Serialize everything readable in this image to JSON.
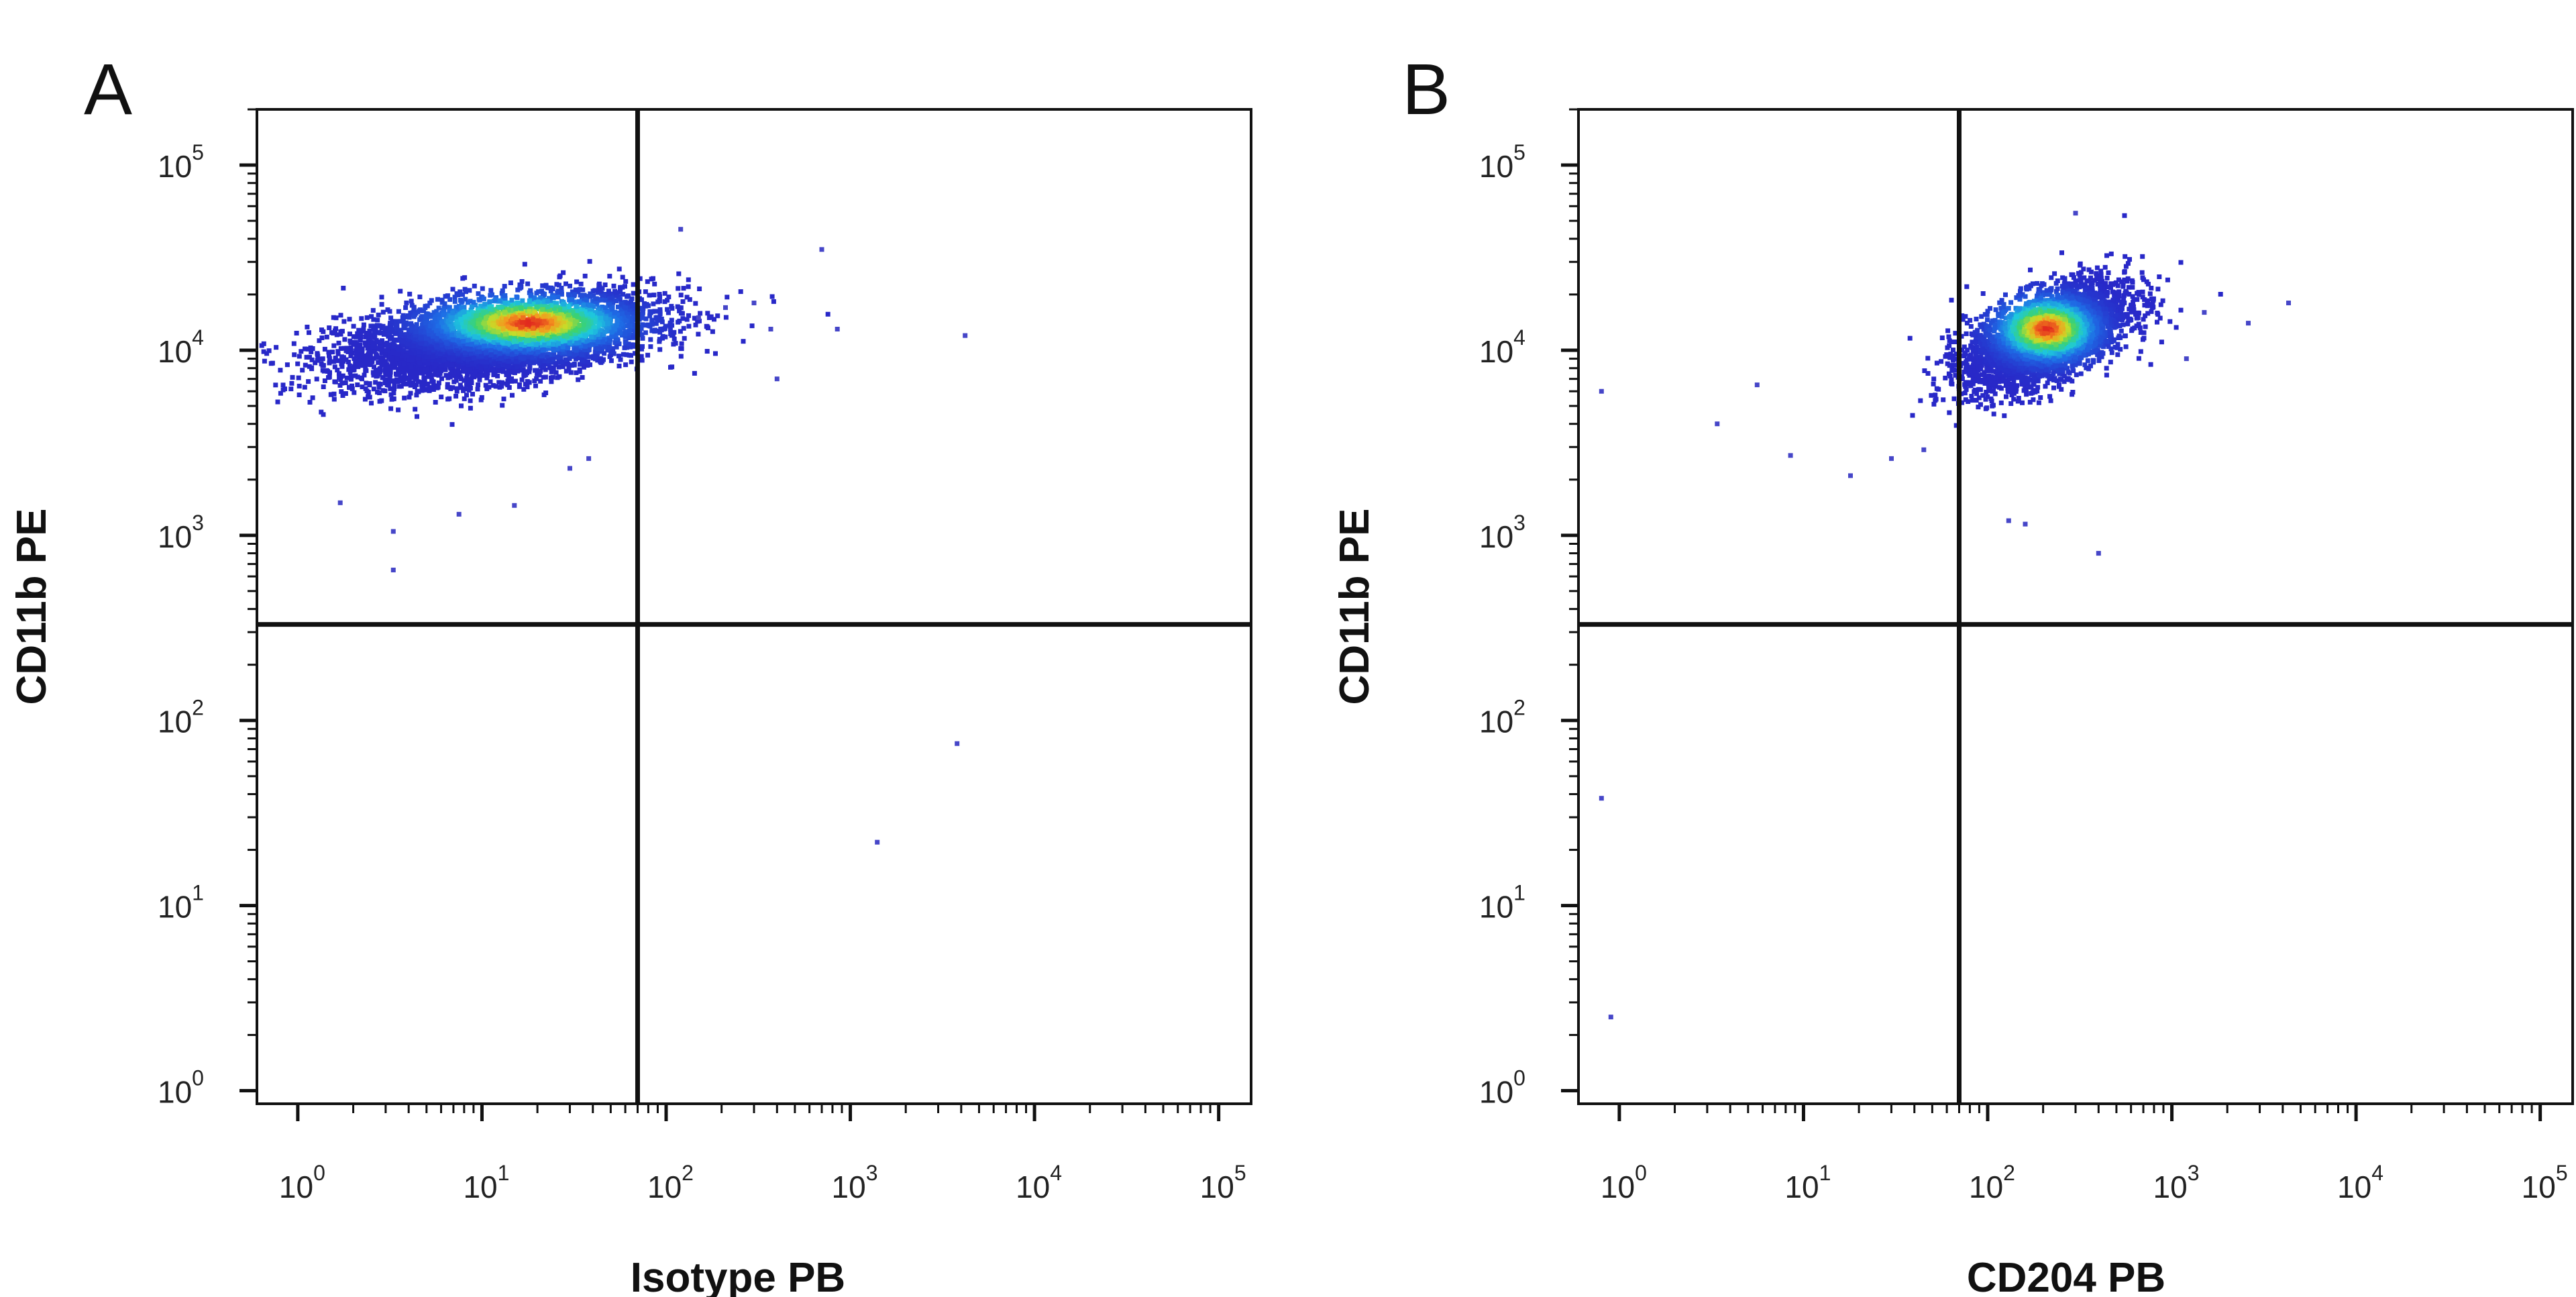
{
  "figure": {
    "background": "#ffffff",
    "line_color": "#111111"
  },
  "chart_data": [
    {
      "panel_letter": "A",
      "type": "scatter",
      "subtype": "flow-cytometry-density-dot-plot",
      "xlabel": "Isotype PB",
      "ylabel": "CD11b PE",
      "xscale": "log",
      "yscale": "log",
      "xlim": [
        0.6,
        150000
      ],
      "ylim": [
        0.85,
        200000
      ],
      "x_ticks": [
        {
          "base": "10",
          "exp": "0"
        },
        {
          "base": "10",
          "exp": "1"
        },
        {
          "base": "10",
          "exp": "2"
        },
        {
          "base": "10",
          "exp": "3"
        },
        {
          "base": "10",
          "exp": "4"
        },
        {
          "base": "10",
          "exp": "5"
        }
      ],
      "y_ticks": [
        {
          "base": "10",
          "exp": "0"
        },
        {
          "base": "10",
          "exp": "1"
        },
        {
          "base": "10",
          "exp": "2"
        },
        {
          "base": "10",
          "exp": "3"
        },
        {
          "base": "10",
          "exp": "4"
        },
        {
          "base": "10",
          "exp": "5"
        }
      ],
      "quadrant_gate": {
        "x": 70,
        "y": 330
      },
      "populations": [
        {
          "name": "",
          "x_center": 12,
          "y_center": 11500,
          "x_log_spread": 0.42,
          "y_log_spread": 0.12,
          "corr": 0.45,
          "n": 5200,
          "peak_x": 18,
          "peak_y": 14000
        }
      ],
      "outliers": [
        [
          3.3,
          650
        ],
        [
          3.3,
          1050
        ],
        [
          1.7,
          1500
        ],
        [
          7.5,
          1300
        ],
        [
          15,
          1450
        ],
        [
          38,
          2600
        ],
        [
          30,
          2300
        ],
        [
          150,
          15000
        ],
        [
          370,
          13000
        ],
        [
          400,
          7000
        ],
        [
          700,
          35000
        ],
        [
          850,
          13000
        ],
        [
          4200,
          12000
        ],
        [
          3800,
          75
        ],
        [
          1400,
          22
        ],
        [
          120,
          45000
        ],
        [
          210,
          17000
        ],
        [
          300,
          18000
        ]
      ]
    },
    {
      "panel_letter": "B",
      "type": "scatter",
      "subtype": "flow-cytometry-density-dot-plot",
      "xlabel": "CD204 PB",
      "ylabel": "CD11b PE",
      "xscale": "log",
      "yscale": "log",
      "xlim": [
        0.6,
        150000
      ],
      "ylim": [
        0.85,
        200000
      ],
      "x_ticks": [
        {
          "base": "10",
          "exp": "0"
        },
        {
          "base": "10",
          "exp": "1"
        },
        {
          "base": "10",
          "exp": "2"
        },
        {
          "base": "10",
          "exp": "3"
        },
        {
          "base": "10",
          "exp": "4"
        },
        {
          "base": "10",
          "exp": "5"
        }
      ],
      "y_ticks": [
        {
          "base": "10",
          "exp": "0"
        },
        {
          "base": "10",
          "exp": "1"
        },
        {
          "base": "10",
          "exp": "2"
        },
        {
          "base": "10",
          "exp": "3"
        },
        {
          "base": "10",
          "exp": "4"
        },
        {
          "base": "10",
          "exp": "5"
        }
      ],
      "quadrant_gate": {
        "x": 70,
        "y": 330
      },
      "populations": [
        {
          "name": "",
          "x_center": 210,
          "y_center": 12000,
          "x_log_spread": 0.22,
          "y_log_spread": 0.14,
          "corr": 0.55,
          "n": 3600,
          "peak_x": 210,
          "peak_y": 13000
        }
      ],
      "outliers": [
        [
          0.8,
          6000
        ],
        [
          3.4,
          4000
        ],
        [
          5.6,
          6500
        ],
        [
          8.5,
          2700
        ],
        [
          18,
          2100
        ],
        [
          30,
          2600
        ],
        [
          45,
          2900
        ],
        [
          130,
          1200
        ],
        [
          160,
          1150
        ],
        [
          400,
          800
        ],
        [
          1500,
          16000
        ],
        [
          2600,
          14000
        ],
        [
          4300,
          18000
        ],
        [
          1200,
          9000
        ],
        [
          300,
          55000
        ],
        [
          0.8,
          38
        ],
        [
          0.9,
          2.5
        ]
      ]
    }
  ]
}
